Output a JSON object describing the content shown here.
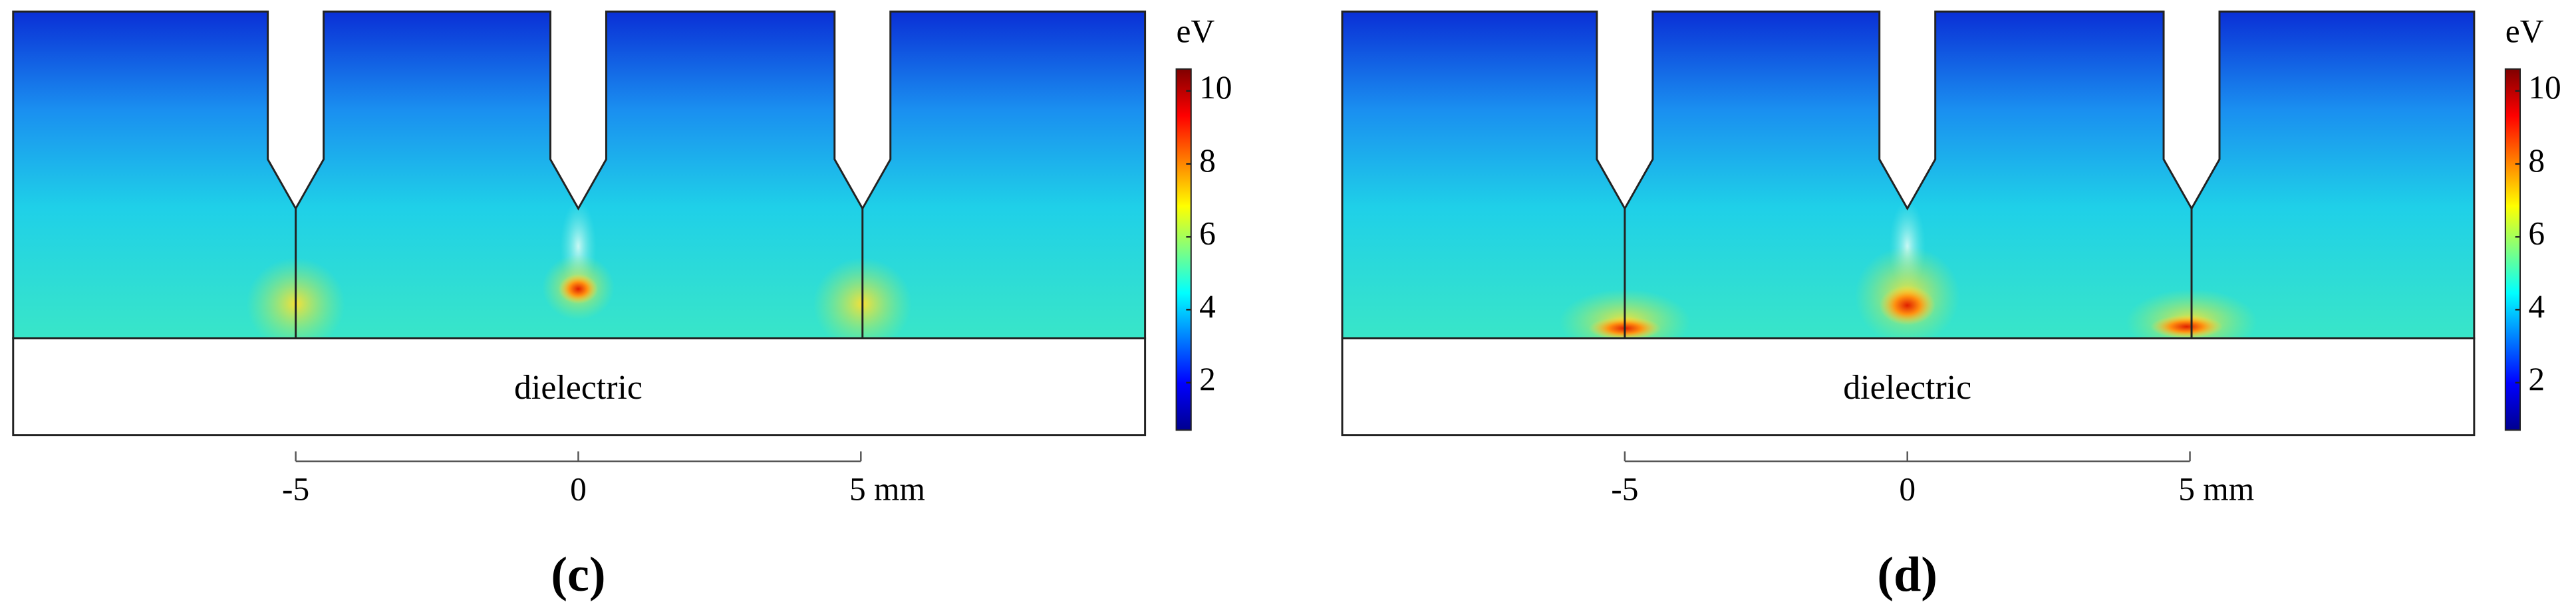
{
  "panels": [
    {
      "label": "(c)",
      "region": "dielectric",
      "colorbar": {
        "unit": "eV",
        "range": [
          0.7,
          10.6
        ],
        "ticks": [
          2,
          4,
          6,
          8,
          10
        ]
      },
      "x_axis": {
        "ticks": [
          -5,
          0,
          {
            "value": 5,
            "label": "5 mm"
          }
        ]
      }
    },
    {
      "label": "(d)",
      "region": "dielectric",
      "colorbar": {
        "unit": "eV",
        "range": [
          0.7,
          10.6
        ],
        "ticks": [
          2,
          4,
          6,
          8,
          10
        ]
      },
      "x_axis": {
        "ticks": [
          -5,
          0,
          {
            "value": 5,
            "label": "5 mm"
          }
        ]
      }
    }
  ]
}
